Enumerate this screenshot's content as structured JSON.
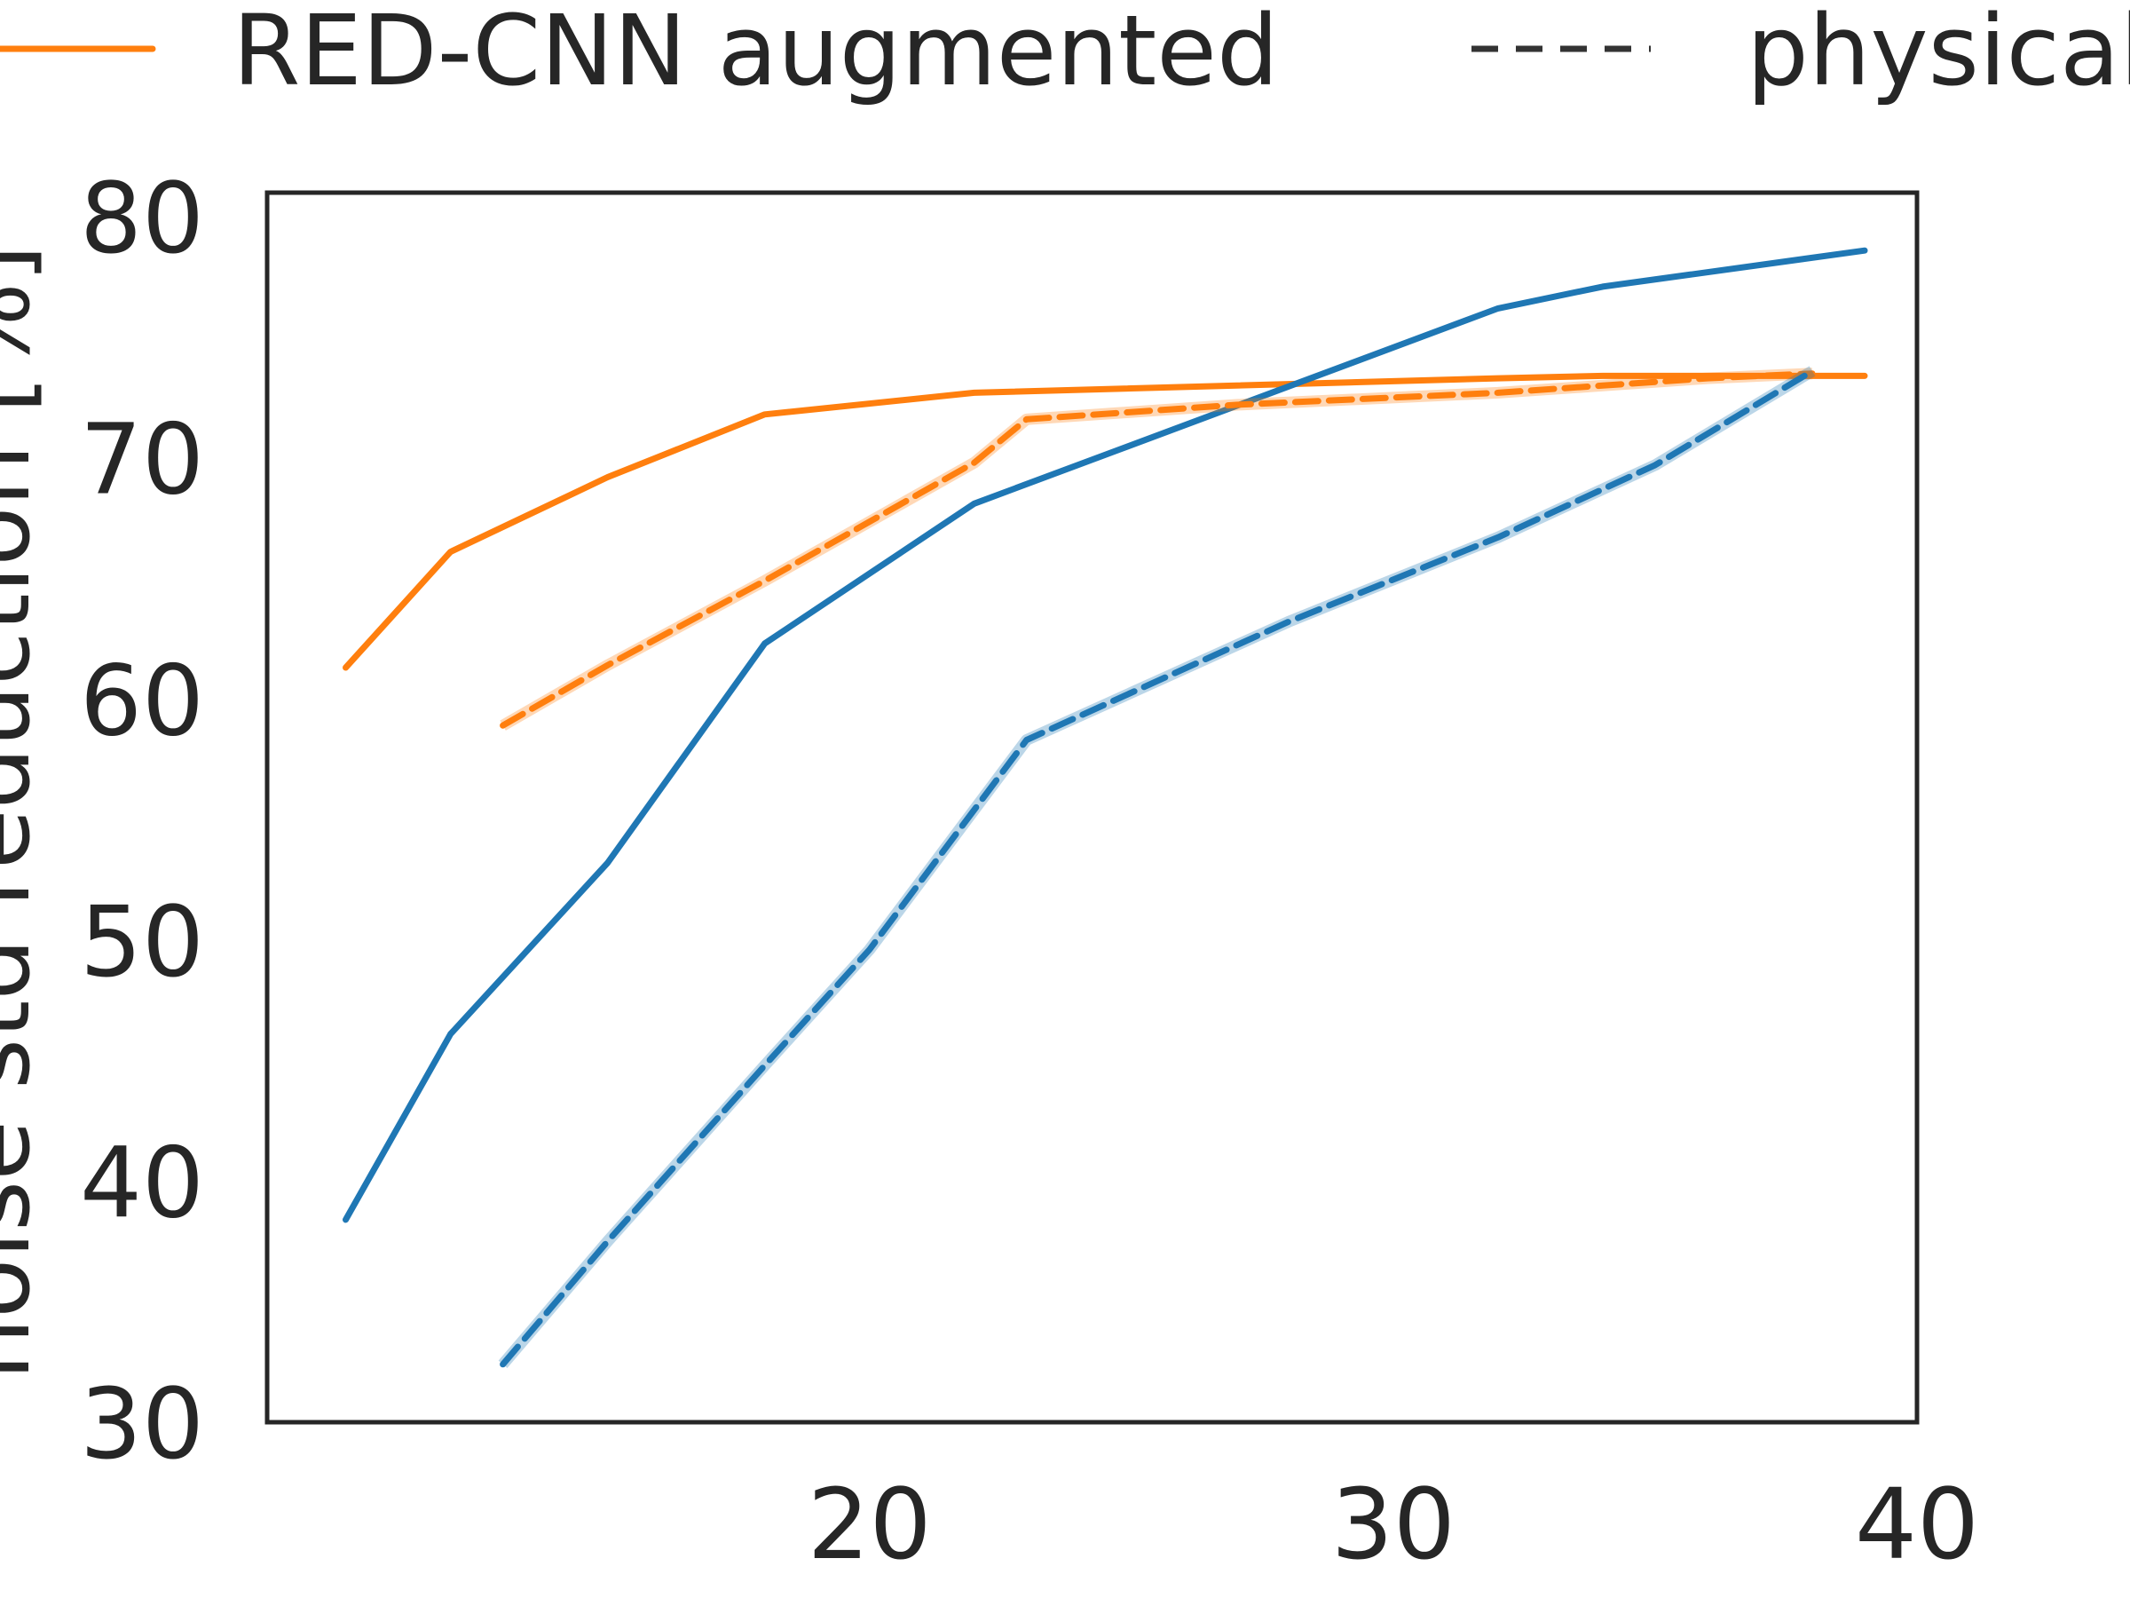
{
  "chart_data": {
    "type": "line",
    "title": "",
    "xlabel": "",
    "ylabel": "noise std reduction [%]",
    "xlim": [
      8.5,
      40
    ],
    "ylim": [
      30,
      81
    ],
    "xticks": [
      20,
      30,
      40
    ],
    "yticks": [
      30,
      40,
      50,
      60,
      70,
      80
    ],
    "grid": false,
    "legend": {
      "placement": "top",
      "entries": [
        {
          "label": "RED-CNN augmented",
          "style": "solid",
          "color": "#ff7f0e"
        },
        {
          "label": "physical",
          "style": "dashed",
          "color": "#333333"
        }
      ]
    },
    "series": [
      {
        "color": "#ff7f0e",
        "dash": "solid",
        "x": [
          10,
          12,
          15,
          18,
          22,
          32,
          34,
          36,
          39
        ],
        "y": [
          61.3,
          66.1,
          69.2,
          71.8,
          72.7,
          73.3,
          73.4,
          73.4,
          73.4
        ]
      },
      {
        "color": "#1f77b4",
        "dash": "solid",
        "x": [
          10,
          12,
          15,
          18,
          22,
          32,
          34,
          39
        ],
        "y": [
          38.4,
          46.1,
          53.2,
          62.3,
          68.1,
          76.2,
          77.1,
          78.6
        ]
      },
      {
        "color": "#ff7f0e",
        "dash": "dashed",
        "x": [
          13,
          15,
          18,
          22,
          23,
          27,
          32,
          34,
          36,
          38
        ],
        "y": [
          58.9,
          61.4,
          64.9,
          69.8,
          71.6,
          72.2,
          72.7,
          73.0,
          73.3,
          73.5
        ]
      },
      {
        "color": "#1f77b4",
        "dash": "dashed",
        "x": [
          13,
          15,
          18,
          20,
          23,
          28,
          32,
          35,
          38
        ],
        "y": [
          32.4,
          37.5,
          44.8,
          49.6,
          58.3,
          63.2,
          66.7,
          69.7,
          73.6
        ]
      }
    ]
  }
}
